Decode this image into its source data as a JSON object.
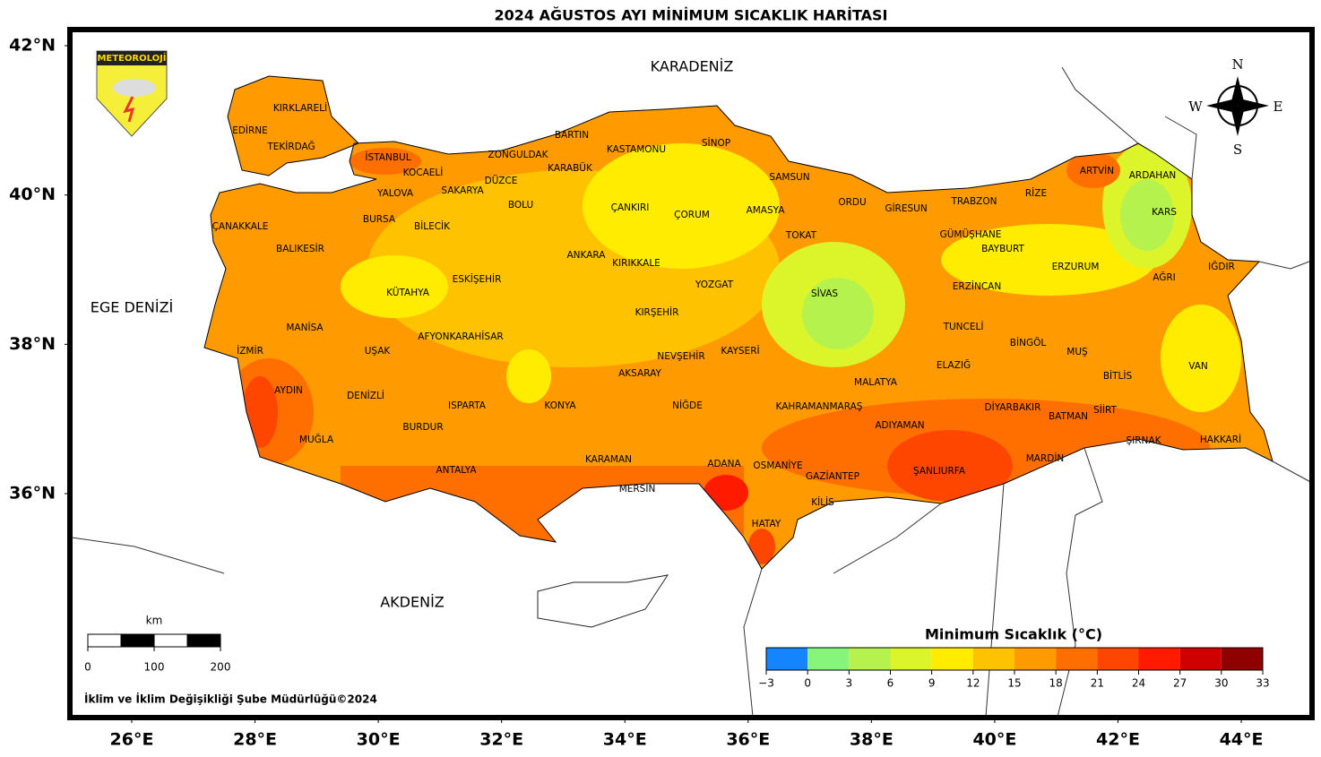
{
  "title": "2024 AĞUSTOS AYI MİNİMUM SICAKLIK HARİTASI",
  "logo_text": "METEOROLOJİ",
  "seas": [
    "KARADENİZ",
    "EGE DENİZİ",
    "AKDENİZ"
  ],
  "provinces": [
    "KIRKLARELİ",
    "EDİRNE",
    "TEKİRDAĞ",
    "İSTANBUL",
    "KOCAELİ",
    "YALOVA",
    "SAKARYA",
    "DÜZCE",
    "ZONGULDAK",
    "BARTIN",
    "KARABÜK",
    "KASTAMONU",
    "SİNOP",
    "SAMSUN",
    "ÇANAKKALE",
    "BURSA",
    "BİLECİK",
    "BOLU",
    "ÇANKIRI",
    "ÇORUM",
    "AMASYA",
    "ORDU",
    "GİRESUN",
    "TRABZON",
    "RİZE",
    "ARTVİN",
    "ARDAHAN",
    "KARS",
    "BALIKESİR",
    "GÜMÜŞHANE",
    "BAYBURT",
    "TOKAT",
    "ANKARA",
    "KIRIKKALE",
    "ERZURUM",
    "IĞDIR",
    "AĞRI",
    "ESKİŞEHİR",
    "KÜTAHYA",
    "YOZGAT",
    "SİVAS",
    "ERZİNCAN",
    "KIRŞEHİR",
    "TUNCELİ",
    "MANİSA",
    "AFYONKARAHİSAR",
    "BİNGÖL",
    "MUŞ",
    "İZMİR",
    "UŞAK",
    "KAYSERİ",
    "NEVŞEHİR",
    "VAN",
    "ELAZIĞ",
    "AKSARAY",
    "BİTLİS",
    "MALATYA",
    "AYDIN",
    "DENİZLİ",
    "ISPARTA",
    "KONYA",
    "NİĞDE",
    "KAHRAMANMARAŞ",
    "DİYARBAKIR",
    "SİİRT",
    "BATMAN",
    "ADIYAMAN",
    "BURDUR",
    "MUĞLA",
    "ŞIRNAK",
    "HAKKARİ",
    "MARDİN",
    "KARAMAN",
    "ADANA",
    "OSMANİYE",
    "ANTALYA",
    "ŞANLIURFA",
    "GAZİANTEP",
    "MERSİN",
    "KİLİS",
    "HATAY"
  ],
  "lat_ticks": [
    {
      "value": 42,
      "label": "42°N"
    },
    {
      "value": 40,
      "label": "40°N"
    },
    {
      "value": 38,
      "label": "38°N"
    },
    {
      "value": 36,
      "label": "36°N"
    }
  ],
  "lon_ticks": [
    {
      "value": 26,
      "label": "26°E"
    },
    {
      "value": 28,
      "label": "28°E"
    },
    {
      "value": 30,
      "label": "30°E"
    },
    {
      "value": 32,
      "label": "32°E"
    },
    {
      "value": 34,
      "label": "34°E"
    },
    {
      "value": 36,
      "label": "36°E"
    },
    {
      "value": 38,
      "label": "38°E"
    },
    {
      "value": 40,
      "label": "40°E"
    },
    {
      "value": 42,
      "label": "42°E"
    },
    {
      "value": 44,
      "label": "44°E"
    }
  ],
  "compass": [
    "N",
    "W",
    "E",
    "S"
  ],
  "scale_bar": {
    "unit": "km",
    "ticks": [
      0,
      100,
      200
    ]
  },
  "colorbar": {
    "title": "Minimum Sıcaklık (°C)",
    "ticks": [
      {
        "value": -3,
        "label": "−3"
      },
      0,
      3,
      6,
      9,
      12,
      15,
      18,
      21,
      24,
      27,
      30,
      33
    ],
    "colors": [
      "#1585ff",
      "#86f57a",
      "#b6f24e",
      "#dcf52a",
      "#ffec00",
      "#ffc200",
      "#ff9b00",
      "#ff6f00",
      "#ff4600",
      "#ff1a00",
      "#cf0000",
      "#8f0000"
    ]
  },
  "credit": "İklim ve İklim Değişikliği Şube Müdürlüğü©2024"
}
